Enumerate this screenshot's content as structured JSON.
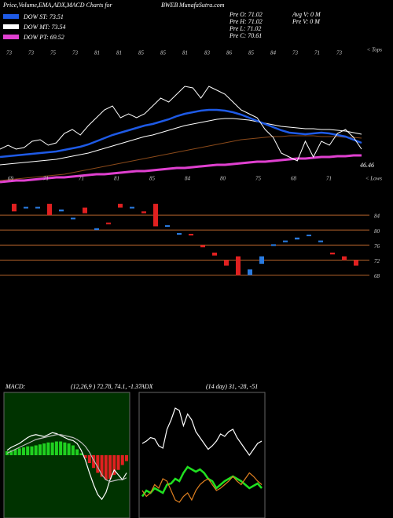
{
  "header": {
    "title": "Price,Volume,EMA,ADX,MACD Charts for",
    "symbol": "BWEB",
    "site": "MunafaSutra.com",
    "legend": [
      {
        "label": "DOW ST: 73.51",
        "color": "#1e5ae6"
      },
      {
        "label": "DOW MT: 73.54",
        "color": "#ffffff"
      },
      {
        "label": "DOW PT: 69.52",
        "color": "#e040d0"
      }
    ],
    "stats": [
      "Pre  O: 71.02",
      "Pre  H: 71.02",
      "Pre  L: 71.02",
      "Pre  C: 70.61"
    ],
    "volume": [
      "Avg  V: 0  M",
      "Pre  V: 0  M"
    ],
    "tops": "< Tops",
    "lows": "< Lows"
  },
  "chart_data": [
    {
      "type": "line",
      "last_label": "46.46",
      "ylim": [
        0,
        180
      ],
      "top_labels": [
        "73",
        "73",
        "75",
        "73",
        "81",
        "81",
        "85",
        "85",
        "81",
        "83",
        "86",
        "85",
        "84",
        "73",
        "71",
        "73"
      ],
      "low_labels": [
        "69",
        "71",
        "71",
        "81",
        "85",
        "84",
        "80",
        "75",
        "68",
        "71"
      ],
      "series": [
        {
          "name": "Price",
          "color": "#ffffff",
          "values": [
            50,
            55,
            50,
            52,
            60,
            62,
            55,
            58,
            70,
            75,
            68,
            80,
            90,
            100,
            105,
            90,
            95,
            90,
            95,
            105,
            115,
            110,
            120,
            130,
            128,
            115,
            130,
            125,
            120,
            110,
            100,
            95,
            90,
            75,
            65,
            45,
            40,
            35,
            60,
            40,
            60,
            55,
            70,
            75,
            65,
            50
          ]
        },
        {
          "name": "DOW ST",
          "color": "#1e5ae6",
          "values": [
            40,
            41,
            42,
            43,
            44,
            45,
            46,
            47,
            49,
            51,
            53,
            56,
            60,
            64,
            68,
            71,
            74,
            77,
            80,
            82,
            85,
            88,
            92,
            95,
            97,
            99,
            100,
            100,
            99,
            97,
            94,
            90,
            86,
            82,
            78,
            74,
            71,
            70,
            69,
            70,
            71,
            70,
            68,
            66,
            62,
            58
          ]
        },
        {
          "name": "DOW MT",
          "color": "#ffffff",
          "values": [
            30,
            31,
            32,
            33,
            34,
            35,
            36,
            37,
            39,
            41,
            43,
            45,
            48,
            51,
            54,
            57,
            60,
            63,
            66,
            68,
            71,
            74,
            77,
            80,
            82,
            84,
            86,
            88,
            89,
            89,
            88,
            87,
            85,
            83,
            81,
            79,
            78,
            77,
            76,
            76,
            75,
            75,
            74,
            73,
            71,
            69
          ]
        },
        {
          "name": "EMA long",
          "color": "#8b4a1a",
          "values": [
            10,
            11,
            12,
            13,
            14,
            15,
            16,
            17,
            18,
            20,
            22,
            24,
            26,
            28,
            30,
            32,
            34,
            36,
            38,
            40,
            42,
            44,
            46,
            48,
            50,
            52,
            54,
            56,
            58,
            60,
            62,
            63,
            64,
            65,
            66,
            66,
            67,
            67,
            67,
            67,
            66,
            66,
            66,
            65,
            65,
            64
          ]
        },
        {
          "name": "DOW PT",
          "color": "#e040d0",
          "values": [
            8,
            9,
            10,
            10,
            11,
            12,
            13,
            14,
            14,
            15,
            16,
            17,
            18,
            18,
            19,
            20,
            21,
            22,
            22,
            23,
            24,
            25,
            26,
            26,
            27,
            28,
            29,
            30,
            30,
            31,
            32,
            33,
            34,
            34,
            35,
            36,
            37,
            38,
            38,
            39,
            40,
            40,
            41,
            41,
            42,
            42
          ]
        }
      ]
    },
    {
      "type": "box",
      "ylim": [
        66,
        88
      ],
      "yticks": [
        84,
        80,
        76,
        72,
        68
      ],
      "up_color": "#2a7be0",
      "down_color": "#e02020",
      "grid_color": "#b0602a",
      "open": [
        87,
        86,
        86,
        87,
        85,
        83,
        86,
        80,
        82,
        87,
        86,
        85,
        87,
        81,
        79,
        79,
        76,
        74,
        72,
        73,
        68,
        71,
        76,
        77,
        77.5,
        78.5,
        77,
        74,
        73,
        72
      ],
      "close": [
        85,
        86.2,
        86.2,
        84,
        85.5,
        83.3,
        84.5,
        80.5,
        81.8,
        86,
        86.2,
        84.5,
        81,
        81.3,
        79.2,
        78.6,
        75.4,
        73.2,
        70.5,
        68,
        69.5,
        73,
        76.2,
        77.2,
        78,
        78.8,
        77.2,
        73.5,
        72,
        70.5
      ]
    },
    {
      "type": "macd",
      "title": "MACD:",
      "params": "(12,26,9 ) 72.78, 74.1, -1.37",
      "ylim": [
        -6,
        6
      ],
      "bg": "#003300",
      "up_color": "#20d020",
      "down_color": "#e02020",
      "hist": [
        0.4,
        0.5,
        0.6,
        0.7,
        0.8,
        0.9,
        0.9,
        1.0,
        1.1,
        1.2,
        1.3,
        1.3,
        1.4,
        1.4,
        1.3,
        1.2,
        1.0,
        0.6,
        0.2,
        -0.3,
        -0.8,
        -1.3,
        -1.8,
        -2.2,
        -2.5,
        -2.4,
        -2.0,
        -1.5,
        -1.0,
        -0.6
      ],
      "series": [
        {
          "name": "MACD",
          "color": "#ffffff",
          "values": [
            0.5,
            0.8,
            1.0,
            1.2,
            1.5,
            1.8,
            2.0,
            2.1,
            2.0,
            1.9,
            2.1,
            2.3,
            2.2,
            2.0,
            1.8,
            1.6,
            1.5,
            1.2,
            0.5,
            -0.5,
            -1.8,
            -3.0,
            -4.0,
            -4.5,
            -3.8,
            -2.5,
            -1.5,
            -2.0,
            -2.5,
            -1.8
          ]
        },
        {
          "name": "Signal",
          "color": "#bbbbbb",
          "values": [
            0.2,
            0.4,
            0.6,
            0.8,
            1.0,
            1.2,
            1.4,
            1.6,
            1.7,
            1.8,
            1.9,
            2.0,
            2.1,
            2.1,
            2.0,
            1.9,
            1.8,
            1.6,
            1.3,
            0.9,
            0.3,
            -0.5,
            -1.2,
            -2.0,
            -2.5,
            -2.7,
            -2.6,
            -2.5,
            -2.5,
            -2.3
          ]
        }
      ]
    },
    {
      "type": "adx",
      "title": "ADX",
      "params": "(14 day) 31, -28, -51",
      "ylim": [
        0,
        100
      ],
      "bg": "#000000",
      "series": [
        {
          "name": "ADX",
          "color": "#ffffff",
          "values": [
            60,
            62,
            65,
            64,
            58,
            56,
            72,
            80,
            90,
            88,
            75,
            85,
            80,
            70,
            65,
            60,
            55,
            58,
            62,
            68,
            66,
            70,
            72,
            65,
            60,
            55,
            50,
            55,
            60,
            62
          ]
        },
        {
          "name": "+DI",
          "color": "#20e020",
          "values": [
            15,
            20,
            18,
            22,
            20,
            18,
            25,
            26,
            30,
            28,
            35,
            40,
            38,
            36,
            38,
            35,
            30,
            28,
            22,
            25,
            28,
            30,
            32,
            30,
            28,
            25,
            22,
            24,
            26,
            22
          ]
        },
        {
          "name": "-DI",
          "color": "#e08020",
          "values": [
            20,
            15,
            18,
            25,
            22,
            30,
            28,
            20,
            12,
            10,
            15,
            18,
            12,
            20,
            25,
            28,
            30,
            25,
            20,
            22,
            25,
            28,
            32,
            28,
            25,
            30,
            35,
            32,
            28,
            25
          ]
        }
      ]
    }
  ]
}
